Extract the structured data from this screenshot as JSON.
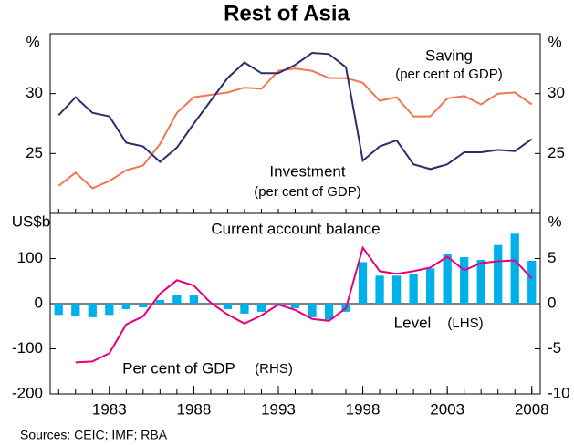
{
  "title": "Rest of Asia",
  "source": "Sources: CEIC; IMF; RBA",
  "chart_data": [
    {
      "type": "line",
      "ylabel": "%",
      "y2label": "%",
      "xlim": [
        1979.5,
        2008.5
      ],
      "ylim": [
        20,
        35
      ],
      "yticks": [
        25,
        30
      ],
      "y2lim": [
        20,
        35
      ],
      "y2ticks": [
        25,
        30
      ],
      "x": [
        1980,
        1981,
        1982,
        1983,
        1984,
        1985,
        1986,
        1987,
        1988,
        1989,
        1990,
        1991,
        1992,
        1993,
        1994,
        1995,
        1996,
        1997,
        1998,
        1999,
        2000,
        2001,
        2002,
        2003,
        2004,
        2005,
        2006,
        2007,
        2008
      ],
      "series": [
        {
          "name": "Saving",
          "color": "#f07850",
          "values": [
            22.3,
            23.4,
            22.1,
            22.7,
            23.6,
            24.0,
            25.8,
            28.4,
            29.7,
            29.9,
            30.1,
            30.5,
            30.4,
            31.9,
            32.1,
            31.9,
            31.3,
            31.3,
            30.9,
            29.4,
            29.7,
            28.1,
            28.1,
            29.6,
            29.8,
            29.1,
            30.0,
            30.1,
            29.1
          ]
        },
        {
          "name": "Investment",
          "color": "#2e2e6e",
          "values": [
            28.2,
            29.7,
            28.4,
            28.1,
            25.9,
            25.6,
            24.3,
            25.5,
            27.5,
            29.4,
            31.3,
            32.6,
            31.7,
            31.7,
            32.4,
            33.4,
            33.3,
            32.2,
            24.4,
            25.6,
            26.1,
            24.1,
            23.7,
            24.1,
            25.1,
            25.1,
            25.3,
            25.2,
            26.2
          ]
        }
      ],
      "annotations": [
        "(per cent of GDP)",
        "(per cent of GDP)"
      ]
    },
    {
      "type": "bar_line",
      "title": "Current account balance",
      "ylabel": "US$b",
      "y2label": "%",
      "xlim": [
        1979.5,
        2008.5
      ],
      "xticks": [
        1983,
        1988,
        1993,
        1998,
        2003,
        2008
      ],
      "ylim": [
        -200,
        200
      ],
      "yticks": [
        -200,
        -100,
        0,
        100
      ],
      "y2lim": [
        -10,
        10
      ],
      "y2ticks": [
        -10,
        -5,
        0,
        5
      ],
      "x": [
        1980,
        1981,
        1982,
        1983,
        1984,
        1985,
        1986,
        1987,
        1988,
        1989,
        1990,
        1991,
        1992,
        1993,
        1994,
        1995,
        1996,
        1997,
        1998,
        1999,
        2000,
        2001,
        2002,
        2003,
        2004,
        2005,
        2006,
        2007,
        2008
      ],
      "series": [
        {
          "name": "Level",
          "color": "#00b0e8",
          "kind": "bar",
          "values": [
            -25,
            -27,
            -30,
            -25,
            -12,
            -8,
            8,
            20,
            18,
            2,
            -12,
            -22,
            -18,
            -3,
            -10,
            -30,
            -35,
            -18,
            92,
            62,
            62,
            65,
            78,
            110,
            103,
            97,
            130,
            155,
            95
          ]
        },
        {
          "name": "Per cent of GDP",
          "color": "#e6007e",
          "kind": "line",
          "axis": "y2",
          "values": [
            null,
            -6.5,
            -6.4,
            -5.5,
            -2.3,
            -1.4,
            1.1,
            2.6,
            2.0,
            0.1,
            -1.2,
            -2.2,
            -1.3,
            -0.1,
            -0.7,
            -1.7,
            -1.9,
            -0.5,
            6.2,
            3.6,
            3.3,
            3.6,
            4.0,
            5.2,
            3.7,
            4.5,
            4.7,
            4.8,
            2.8
          ]
        }
      ],
      "annotations": [
        "(LHS)",
        "(RHS)"
      ]
    }
  ]
}
